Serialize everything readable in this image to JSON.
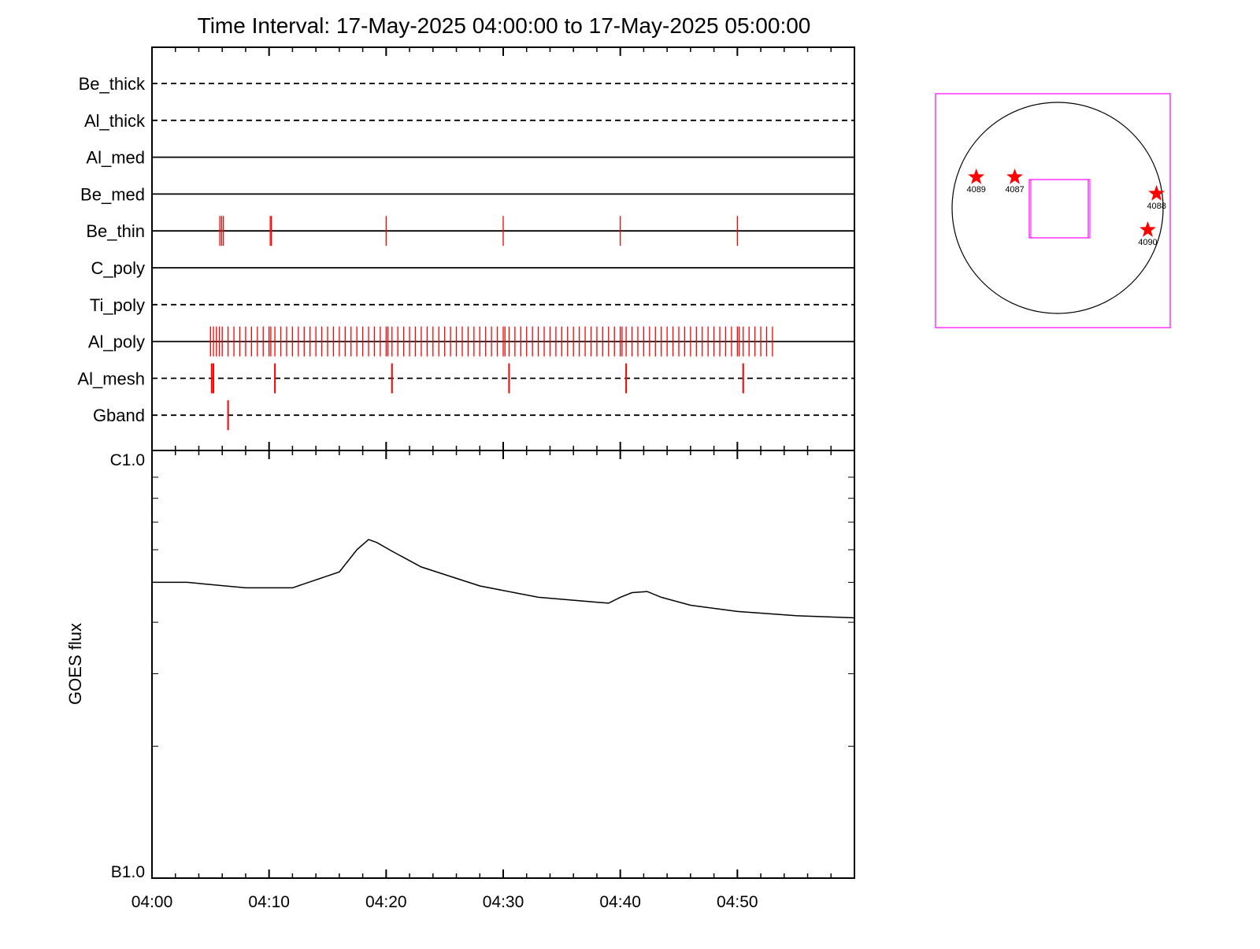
{
  "chart_data": {
    "title": "Time Interval: 17-May-2025 04:00:00 to 17-May-2025 05:00:00",
    "colors": {
      "axis": "#000000",
      "marks": "#ff0000",
      "fov_box": "#ff00ff",
      "solar_disk": "#000000"
    },
    "timeline": {
      "type": "event-timeline",
      "x_range_minutes": [
        0,
        60
      ],
      "filters": [
        {
          "name": "Be_thick",
          "line_style": "dashed",
          "events": [],
          "tall_events": []
        },
        {
          "name": "Al_thick",
          "line_style": "dashed",
          "events": [],
          "tall_events": []
        },
        {
          "name": "Al_med",
          "line_style": "solid",
          "events": [],
          "tall_events": []
        },
        {
          "name": "Be_med",
          "line_style": "solid",
          "events": [],
          "tall_events": []
        },
        {
          "name": "Be_thin",
          "line_style": "solid",
          "events": [
            5.8,
            5.95,
            6.1,
            10.1,
            10.2,
            20.0,
            30.0,
            40.0,
            50.0
          ],
          "tall_events": []
        },
        {
          "name": "C_poly",
          "line_style": "solid",
          "events": [],
          "tall_events": []
        },
        {
          "name": "Ti_poly",
          "line_style": "dashed",
          "events": [],
          "tall_events": []
        },
        {
          "name": "Al_poly",
          "line_style": "solid",
          "events": [
            5.0,
            5.25,
            5.5,
            5.75,
            6.0,
            6.5,
            7.0,
            7.5,
            8.0,
            8.5,
            9.0,
            9.5,
            10.0,
            10.15,
            10.5,
            11.0,
            11.5,
            12.0,
            12.5,
            13.0,
            13.5,
            14.0,
            14.5,
            15.0,
            15.5,
            16.0,
            16.5,
            17.0,
            17.5,
            18.0,
            18.5,
            19.0,
            19.5,
            20.0,
            20.15,
            20.5,
            21.0,
            21.5,
            22.0,
            22.5,
            23.0,
            23.5,
            24.0,
            24.5,
            25.0,
            25.5,
            26.0,
            26.5,
            27.0,
            27.5,
            28.0,
            28.5,
            29.0,
            29.5,
            30.0,
            30.15,
            30.5,
            31.0,
            31.5,
            32.0,
            32.5,
            33.0,
            33.5,
            34.0,
            34.5,
            35.0,
            35.5,
            36.0,
            36.5,
            37.0,
            37.5,
            38.0,
            38.5,
            39.0,
            39.5,
            40.0,
            40.15,
            40.5,
            41.0,
            41.5,
            42.0,
            42.5,
            43.0,
            43.5,
            44.0,
            44.5,
            45.0,
            45.5,
            46.0,
            46.5,
            47.0,
            47.5,
            48.0,
            48.5,
            49.0,
            49.5,
            50.0,
            50.15,
            50.5,
            51.0,
            51.5,
            52.0,
            52.5,
            53.0
          ],
          "tall_events": []
        },
        {
          "name": "Al_mesh",
          "line_style": "dashed",
          "events": [],
          "tall_events": [
            5.1,
            5.25,
            10.5,
            20.5,
            30.5,
            40.5,
            50.5
          ]
        },
        {
          "name": "Gband",
          "line_style": "dashed",
          "events": [],
          "tall_events": [
            6.5
          ]
        }
      ]
    },
    "goes": {
      "type": "line",
      "ylabel": "GOES flux",
      "y_tick_labels": [
        "C1.0",
        "B1.0"
      ],
      "y_scale": "log",
      "ylim": [
        1e-07,
        1e-06
      ],
      "x": [
        0,
        3,
        8,
        12,
        16,
        17.5,
        18.5,
        19.2,
        20.5,
        23,
        28,
        33,
        39,
        40,
        41,
        42.3,
        43.5,
        46,
        50,
        55,
        60
      ],
      "y": [
        5e-07,
        5e-07,
        4.85e-07,
        4.85e-07,
        5.3e-07,
        6e-07,
        6.35e-07,
        6.25e-07,
        5.95e-07,
        5.45e-07,
        4.9e-07,
        4.6e-07,
        4.45e-07,
        4.6e-07,
        4.72e-07,
        4.75e-07,
        4.6e-07,
        4.4e-07,
        4.25e-07,
        4.15e-07,
        4.1e-07
      ]
    },
    "x_tick_labels": [
      "04:00",
      "04:10",
      "04:20",
      "04:30",
      "04:40",
      "04:50"
    ],
    "solar_map": {
      "regions": [
        {
          "label": "4089",
          "x": -740,
          "y": 280
        },
        {
          "label": "4087",
          "x": -390,
          "y": 280
        },
        {
          "label": "4088",
          "x": 900,
          "y": 130
        },
        {
          "label": "4090",
          "x": 820,
          "y": -200
        }
      ]
    }
  }
}
